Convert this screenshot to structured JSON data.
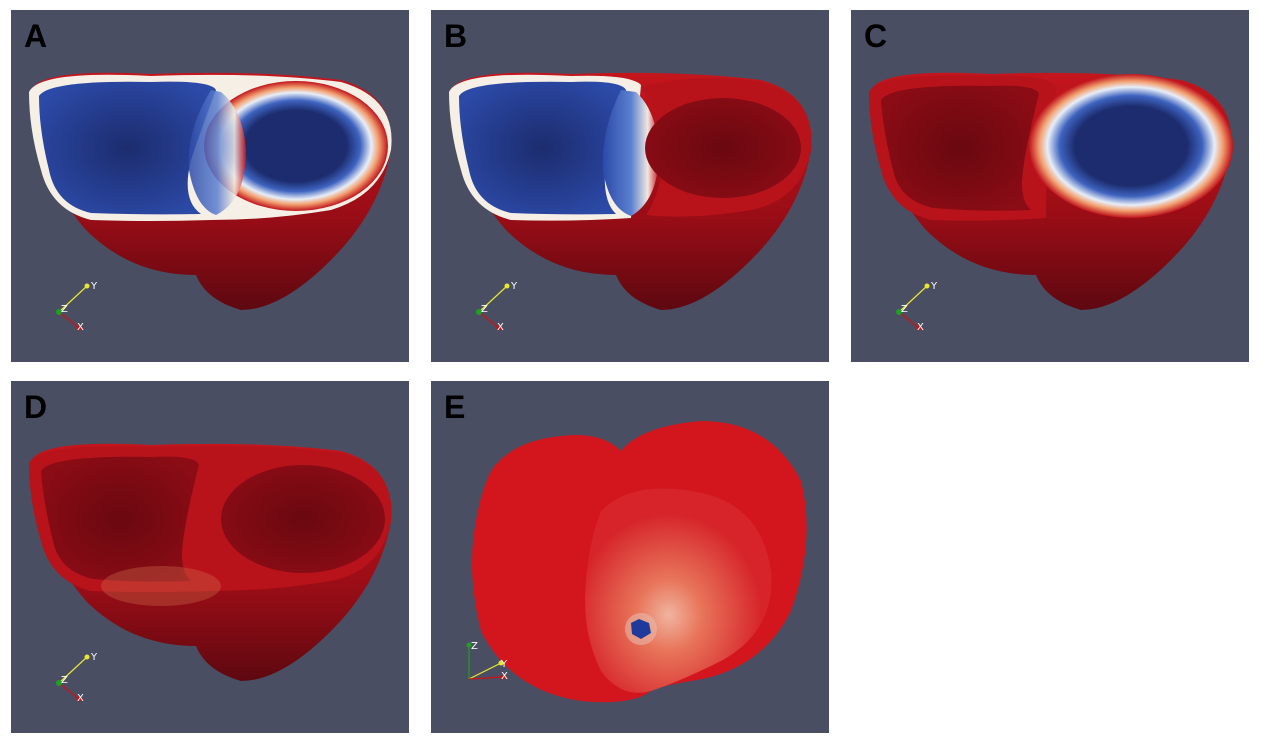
{
  "panels": [
    {
      "id": "A",
      "label": "A"
    },
    {
      "id": "B",
      "label": "B"
    },
    {
      "id": "C",
      "label": "C"
    },
    {
      "id": "D",
      "label": "D"
    },
    {
      "id": "E",
      "label": "E"
    }
  ],
  "axes": {
    "x": "X",
    "y": "Y",
    "z": "Z"
  },
  "colors": {
    "background": "#4a4e63",
    "tissue_red": "#b0101a",
    "tissue_dark": "#6a0810",
    "cavity_blue": "#233a8c",
    "cavity_dark": "#14224f",
    "rim_white": "#f4efe8",
    "stimulus_blue": "#1f3a9a",
    "axis_x": "#d01010",
    "axis_y": "#e8e830",
    "axis_z": "#20a020"
  }
}
